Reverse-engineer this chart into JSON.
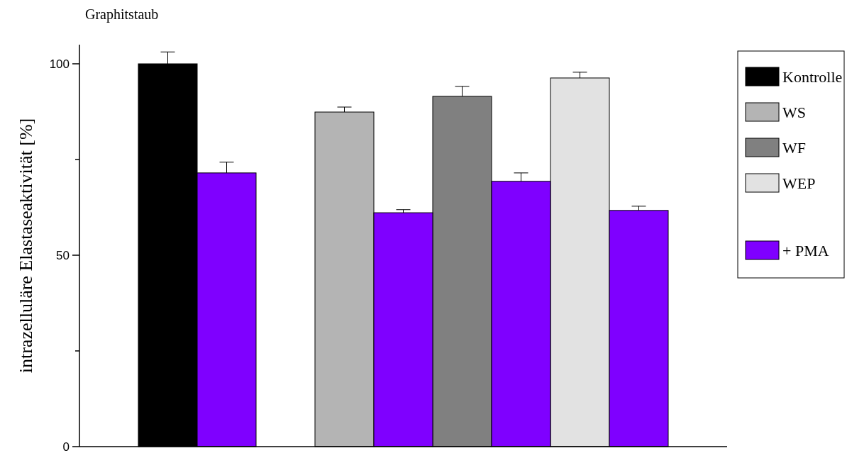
{
  "chart_data": {
    "type": "bar",
    "title": "Graphitstaub",
    "ylabel": "intrazelluläre Elastaseaktivität [%]",
    "categories": [
      null,
      null,
      null,
      null,
      null,
      null,
      null,
      null,
      null,
      null,
      null
    ],
    "series": [
      {
        "name": "Kontrolle",
        "color": "#000000",
        "values": [
          null,
          100,
          null,
          null,
          null,
          null,
          null,
          null,
          null,
          null,
          null
        ],
        "errors": [
          null,
          [
            100,
            103.1
          ],
          null,
          null,
          null,
          null,
          null,
          null,
          null,
          null,
          null
        ]
      },
      {
        "name": "WS",
        "color": "#b4b4b4",
        "values": [
          null,
          null,
          null,
          null,
          87.4,
          null,
          null,
          null,
          null,
          null,
          null
        ],
        "errors": [
          null,
          null,
          null,
          null,
          [
            87.4,
            88.7
          ],
          null,
          null,
          null,
          null,
          null,
          null
        ]
      },
      {
        "name": "WF",
        "color": "#808080",
        "values": [
          null,
          null,
          null,
          null,
          null,
          null,
          91.5,
          null,
          null,
          null,
          null
        ],
        "errors": [
          null,
          null,
          null,
          null,
          null,
          null,
          [
            91.5,
            94.1
          ],
          null,
          null,
          null,
          null
        ]
      },
      {
        "name": "WEP",
        "color": "#e2e2e2",
        "values": [
          null,
          null,
          null,
          null,
          null,
          null,
          null,
          null,
          96.3,
          null,
          null
        ],
        "errors": [
          null,
          null,
          null,
          null,
          null,
          null,
          null,
          null,
          [
            96.3,
            97.8
          ],
          null,
          null
        ]
      },
      {
        "name": "+ PMA",
        "color": "#7f00ff",
        "values": [
          null,
          null,
          71.5,
          null,
          null,
          61.1,
          null,
          69.3,
          null,
          61.7,
          null
        ],
        "errors": [
          null,
          null,
          [
            71.5,
            74.3
          ],
          null,
          null,
          [
            61.1,
            61.9
          ],
          null,
          [
            69.3,
            71.5
          ],
          null,
          [
            61.7,
            62.8
          ],
          null
        ]
      }
    ],
    "ylim": [
      0,
      105
    ],
    "yticks": [
      0,
      {
        "value": 25,
        "label": null
      },
      50,
      {
        "value": 75,
        "label": null
      },
      100
    ],
    "grid": false,
    "legend": "right"
  }
}
